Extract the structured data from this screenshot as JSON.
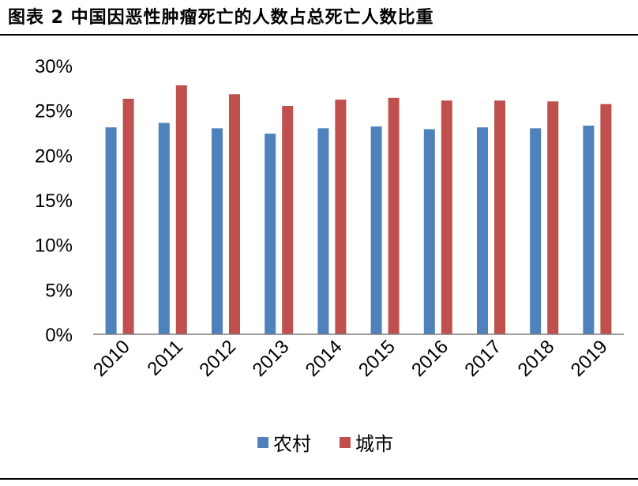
{
  "figure": {
    "title": "图表 2 中国因恶性肿瘤死亡的人数占总死亡人数比重"
  },
  "chart_data": {
    "type": "bar",
    "title": "",
    "xlabel": "",
    "ylabel": "",
    "categories": [
      "2010",
      "2011",
      "2012",
      "2013",
      "2014",
      "2015",
      "2016",
      "2017",
      "2018",
      "2019"
    ],
    "series": [
      {
        "name": "农村",
        "color": "#4F81BD",
        "values": [
          23.1,
          23.6,
          23.0,
          22.4,
          23.0,
          23.2,
          22.9,
          23.1,
          23.0,
          23.3
        ]
      },
      {
        "name": "城市",
        "color": "#C0504D",
        "values": [
          26.3,
          27.8,
          26.8,
          25.5,
          26.2,
          26.4,
          26.1,
          26.1,
          26.0,
          25.7
        ]
      }
    ],
    "ylim": [
      0,
      30
    ],
    "yticks": [
      0,
      5,
      10,
      15,
      20,
      25,
      30
    ],
    "ytick_format": "percent",
    "grid": false,
    "legend_position": "bottom"
  }
}
